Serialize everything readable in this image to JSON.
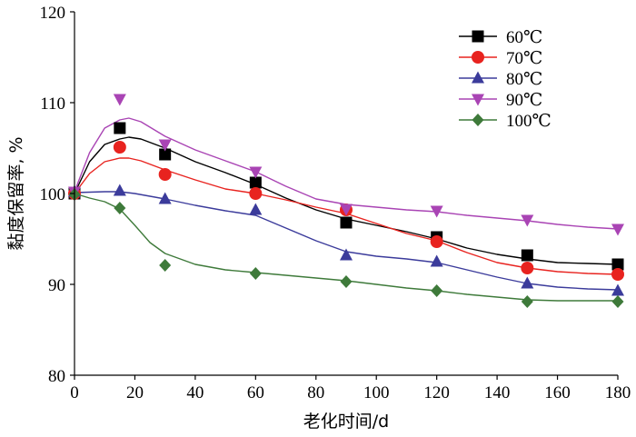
{
  "chart_data": {
    "type": "line",
    "xlabel": "老化时间/d",
    "ylabel": "黏度保留率, %",
    "xlim": [
      0,
      180
    ],
    "ylim": [
      80,
      120
    ],
    "x_ticks": [
      "0",
      "20",
      "40",
      "60",
      "80",
      "100",
      "120",
      "140",
      "160",
      "180"
    ],
    "y_ticks": [
      "80",
      "90",
      "100",
      "110",
      "120"
    ],
    "grid": false,
    "legend_position": "top-right",
    "x": [
      0,
      15,
      30,
      60,
      90,
      120,
      150,
      180
    ],
    "series": [
      {
        "name": "60℃",
        "color": "#000000",
        "marker": "square",
        "values": [
          100.0,
          107.2,
          104.3,
          101.2,
          96.8,
          95.2,
          93.2,
          92.2
        ],
        "curve": [
          [
            0,
            100.0
          ],
          [
            5,
            103.5
          ],
          [
            10,
            105.4
          ],
          [
            15,
            106.0
          ],
          [
            18,
            106.2
          ],
          [
            22,
            106.0
          ],
          [
            30,
            105.0
          ],
          [
            40,
            103.5
          ],
          [
            50,
            102.3
          ],
          [
            60,
            101.0
          ],
          [
            70,
            99.5
          ],
          [
            80,
            98.2
          ],
          [
            90,
            97.2
          ],
          [
            100,
            96.5
          ],
          [
            110,
            95.8
          ],
          [
            120,
            95.0
          ],
          [
            130,
            94.0
          ],
          [
            140,
            93.3
          ],
          [
            150,
            92.8
          ],
          [
            160,
            92.4
          ],
          [
            170,
            92.3
          ],
          [
            180,
            92.2
          ]
        ]
      },
      {
        "name": "70℃",
        "color": "#e8231f",
        "marker": "circle",
        "values": [
          100.0,
          105.1,
          102.1,
          100.0,
          98.2,
          94.7,
          91.8,
          91.1
        ],
        "curve": [
          [
            0,
            100.0
          ],
          [
            5,
            102.2
          ],
          [
            10,
            103.5
          ],
          [
            15,
            103.9
          ],
          [
            18,
            103.9
          ],
          [
            22,
            103.6
          ],
          [
            30,
            102.6
          ],
          [
            40,
            101.5
          ],
          [
            50,
            100.5
          ],
          [
            60,
            100.0
          ],
          [
            70,
            99.3
          ],
          [
            80,
            98.5
          ],
          [
            90,
            97.8
          ],
          [
            100,
            96.7
          ],
          [
            110,
            95.6
          ],
          [
            120,
            94.8
          ],
          [
            130,
            93.5
          ],
          [
            140,
            92.4
          ],
          [
            150,
            91.8
          ],
          [
            160,
            91.4
          ],
          [
            170,
            91.2
          ],
          [
            180,
            91.1
          ]
        ]
      },
      {
        "name": "80℃",
        "color": "#3b3b9b",
        "marker": "triangle-up",
        "values": [
          100.2,
          100.3,
          99.4,
          98.2,
          93.2,
          92.5,
          90.1,
          89.3
        ],
        "curve": [
          [
            0,
            100.1
          ],
          [
            10,
            100.2
          ],
          [
            15,
            100.2
          ],
          [
            20,
            100.0
          ],
          [
            30,
            99.4
          ],
          [
            40,
            98.7
          ],
          [
            50,
            98.1
          ],
          [
            60,
            97.6
          ],
          [
            70,
            96.2
          ],
          [
            80,
            94.8
          ],
          [
            90,
            93.6
          ],
          [
            100,
            93.1
          ],
          [
            110,
            92.8
          ],
          [
            120,
            92.4
          ],
          [
            130,
            91.6
          ],
          [
            140,
            90.8
          ],
          [
            150,
            90.1
          ],
          [
            160,
            89.7
          ],
          [
            170,
            89.5
          ],
          [
            180,
            89.4
          ]
        ]
      },
      {
        "name": "90℃",
        "color": "#a944b4",
        "marker": "triangle-down",
        "values": [
          100.2,
          110.4,
          105.4,
          102.4,
          98.3,
          98.1,
          97.1,
          96.1
        ],
        "curve": [
          [
            0,
            100.2
          ],
          [
            5,
            104.5
          ],
          [
            10,
            107.2
          ],
          [
            15,
            108.1
          ],
          [
            18,
            108.3
          ],
          [
            22,
            107.9
          ],
          [
            30,
            106.3
          ],
          [
            40,
            104.8
          ],
          [
            50,
            103.6
          ],
          [
            60,
            102.4
          ],
          [
            70,
            100.8
          ],
          [
            80,
            99.4
          ],
          [
            90,
            98.8
          ],
          [
            100,
            98.5
          ],
          [
            110,
            98.2
          ],
          [
            120,
            98.0
          ],
          [
            130,
            97.6
          ],
          [
            140,
            97.3
          ],
          [
            150,
            97.0
          ],
          [
            160,
            96.6
          ],
          [
            170,
            96.3
          ],
          [
            180,
            96.1
          ]
        ]
      },
      {
        "name": "100℃",
        "color": "#3e7a3a",
        "marker": "diamond",
        "values": [
          99.9,
          98.4,
          92.1,
          91.2,
          90.3,
          89.3,
          88.1,
          88.1
        ],
        "curve": [
          [
            0,
            100.0
          ],
          [
            5,
            99.5
          ],
          [
            10,
            99.1
          ],
          [
            15,
            98.3
          ],
          [
            20,
            96.5
          ],
          [
            25,
            94.6
          ],
          [
            30,
            93.4
          ],
          [
            40,
            92.2
          ],
          [
            50,
            91.6
          ],
          [
            60,
            91.3
          ],
          [
            70,
            91.0
          ],
          [
            80,
            90.7
          ],
          [
            90,
            90.4
          ],
          [
            100,
            90.0
          ],
          [
            110,
            89.6
          ],
          [
            120,
            89.3
          ],
          [
            130,
            88.9
          ],
          [
            140,
            88.6
          ],
          [
            150,
            88.3
          ],
          [
            160,
            88.2
          ],
          [
            170,
            88.2
          ],
          [
            180,
            88.2
          ]
        ]
      }
    ]
  }
}
